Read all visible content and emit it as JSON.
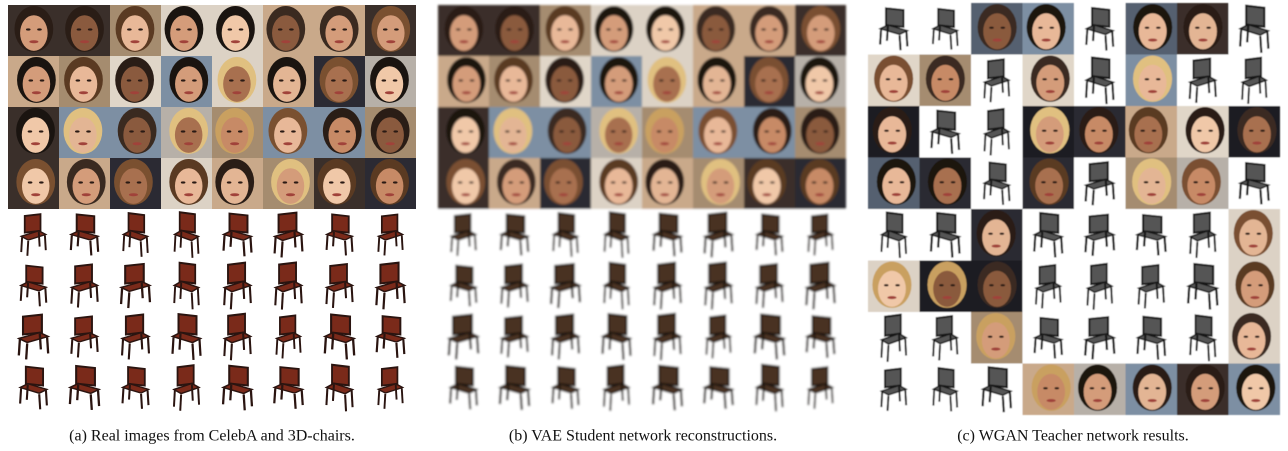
{
  "captions": [
    "(a) Real images from CelebA and 3D-chairs.",
    "(b) VAE Student network reconstructions.",
    "(c) WGAN Teacher network results."
  ]
}
